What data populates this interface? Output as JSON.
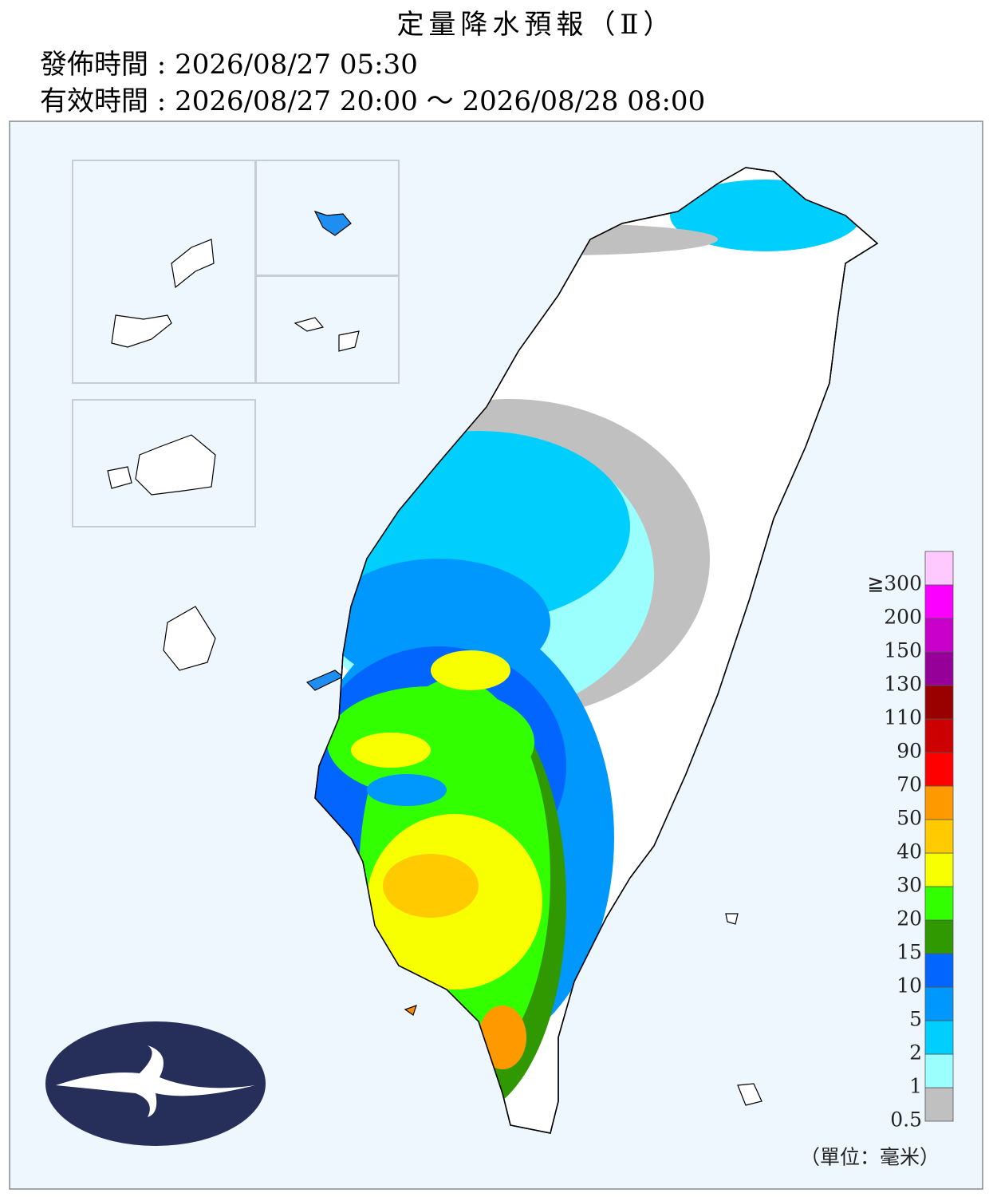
{
  "header": {
    "title": "定量降水預報（Ⅱ）",
    "issued": "發佈時間 : 2026/08/27 05:30",
    "valid": "有效時間 : 2026/08/27 20:00 ～ 2026/08/28 08:00"
  },
  "legend": {
    "colors": [
      "#c0c0c0",
      "#9bfffe",
      "#00cffe",
      "#0198fe",
      "#0165fe",
      "#309901",
      "#32ff00",
      "#f8ff00",
      "#ffcb00",
      "#ff9900",
      "#fe0000",
      "#cc0000",
      "#990000",
      "#960099",
      "#c900cc",
      "#fb00ff",
      "#fdc9fe"
    ],
    "labels": [
      "0.5",
      "1",
      "2",
      "5",
      "10",
      "15",
      "20",
      "30",
      "40",
      "50",
      "70",
      "90",
      "110",
      "130",
      "150",
      "200",
      "≧300"
    ],
    "unit": "（單位：毫米）"
  }
}
